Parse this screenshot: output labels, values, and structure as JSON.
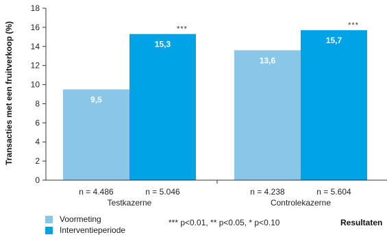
{
  "chart_data": {
    "type": "bar",
    "title": "",
    "ylabel": "Transacties met een fruitverkoop (%)",
    "ylim": [
      0,
      18
    ],
    "yticks": [
      "0",
      "2",
      "4",
      "6",
      "8",
      "10",
      "12",
      "14",
      "16",
      "18"
    ],
    "groups": [
      {
        "label": "Testkazerne",
        "n_labels": [
          "n = 4.486",
          "n = 5.046"
        ],
        "significance": "***"
      },
      {
        "label": "Controlekazerne",
        "n_labels": [
          "n = 4.238",
          "n = 5.604"
        ],
        "significance": "***"
      }
    ],
    "series": [
      {
        "name": "Voormeting",
        "color": "#8ac6e8",
        "values": [
          9.5,
          13.6
        ],
        "value_labels": [
          "9,5",
          "13,6"
        ]
      },
      {
        "name": "Interventieperiode",
        "color": "#00a3e6",
        "values": [
          15.3,
          15.7
        ],
        "value_labels": [
          "15,3",
          "15,7"
        ]
      }
    ],
    "legend_position": "bottom-left",
    "grid": false
  },
  "footnote": "*** p<0.01, ** p<0.05, * p<0.10",
  "corner_label": "Resultaten"
}
